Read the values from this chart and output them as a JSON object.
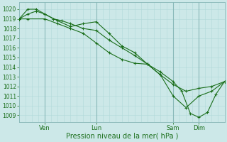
{
  "bg_color": "#cce8e8",
  "grid_color_minor": "#b0d8d8",
  "grid_color_major": "#88b8b8",
  "line_color": "#1a6e1a",
  "marker_color": "#1a6e1a",
  "xlabel": "Pression niveau de la mer( hPa )",
  "xlabel_fontsize": 7,
  "yticks": [
    1009,
    1010,
    1011,
    1012,
    1013,
    1014,
    1015,
    1016,
    1017,
    1018,
    1019,
    1020
  ],
  "ylim": [
    1008.3,
    1020.7
  ],
  "xlim": [
    0,
    96
  ],
  "xtick_positions": [
    12,
    36,
    72,
    84
  ],
  "xtick_labels": [
    "Ven",
    "Lun",
    "Sam",
    "Dim"
  ],
  "vline_positions": [
    12,
    36,
    72,
    84
  ],
  "series1_x": [
    0,
    4,
    12,
    18,
    24,
    30,
    36,
    42,
    48,
    54,
    60,
    66,
    72,
    78,
    84,
    90,
    96
  ],
  "series1_y": [
    1019.0,
    1019.0,
    1019.0,
    1018.5,
    1018.0,
    1017.5,
    1016.5,
    1015.5,
    1014.8,
    1014.4,
    1014.3,
    1013.2,
    1011.0,
    1009.8,
    1011.0,
    1011.5,
    1012.5
  ],
  "series2_x": [
    0,
    4,
    8,
    12,
    18,
    24,
    30,
    36,
    42,
    48,
    54,
    60,
    66,
    72,
    78,
    84,
    90,
    96
  ],
  "series2_y": [
    1019.0,
    1019.5,
    1019.8,
    1019.5,
    1018.8,
    1018.2,
    1018.5,
    1018.7,
    1017.5,
    1016.2,
    1015.5,
    1014.3,
    1013.2,
    1012.2,
    1011.5,
    1011.8,
    1012.0,
    1012.5
  ],
  "series3_x": [
    0,
    4,
    8,
    12,
    16,
    20,
    24,
    30,
    36,
    42,
    48,
    54,
    60,
    66,
    72,
    76,
    80,
    84,
    88,
    92,
    96
  ],
  "series3_y": [
    1019.0,
    1020.0,
    1020.0,
    1019.5,
    1019.0,
    1018.8,
    1018.5,
    1018.0,
    1017.8,
    1016.8,
    1016.0,
    1015.2,
    1014.3,
    1013.5,
    1012.5,
    1011.5,
    1009.2,
    1008.8,
    1009.3,
    1011.2,
    1012.5
  ]
}
